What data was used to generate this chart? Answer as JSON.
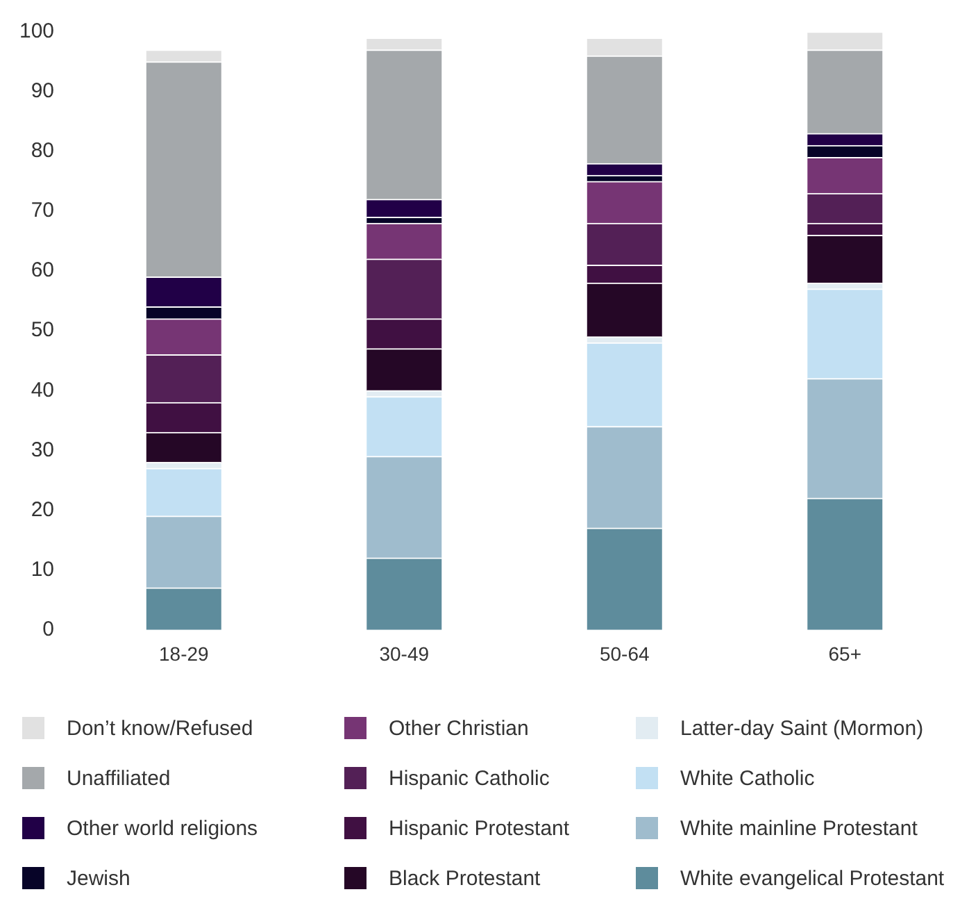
{
  "chart_data": {
    "type": "bar",
    "stacked": true,
    "categories": [
      "18-29",
      "30-49",
      "50-64",
      "65+"
    ],
    "ylim": [
      0,
      100
    ],
    "yticks": [
      0,
      10,
      20,
      30,
      40,
      50,
      60,
      70,
      80,
      90,
      100
    ],
    "grid": false,
    "legend": "bottom",
    "series": [
      {
        "name": "White evangelical Protestant",
        "color": "#5e8c9c",
        "values": [
          7,
          12,
          17,
          22
        ]
      },
      {
        "name": "White mainline Protestant",
        "color": "#9fbccd",
        "values": [
          12,
          17,
          17,
          20
        ]
      },
      {
        "name": "White Catholic",
        "color": "#c2e0f3",
        "values": [
          8,
          10,
          14,
          15
        ]
      },
      {
        "name": "Latter-day Saint (Mormon)",
        "color": "#e2ecf2",
        "values": [
          1,
          1,
          1,
          1
        ]
      },
      {
        "name": "Black Protestant",
        "color": "#250726",
        "values": [
          5,
          7,
          9,
          8
        ]
      },
      {
        "name": "Hispanic Protestant",
        "color": "#401042",
        "values": [
          5,
          5,
          3,
          2
        ]
      },
      {
        "name": "Hispanic Catholic",
        "color": "#532056",
        "values": [
          8,
          10,
          7,
          5
        ]
      },
      {
        "name": "Other Christian",
        "color": "#763574",
        "values": [
          6,
          6,
          7,
          6
        ]
      },
      {
        "name": "Jewish",
        "color": "#070428",
        "values": [
          2,
          1,
          1,
          2
        ]
      },
      {
        "name": "Other world religions",
        "color": "#210047",
        "values": [
          5,
          3,
          2,
          2
        ]
      },
      {
        "name": "Unaffiliated",
        "color": "#a4a8ab",
        "values": [
          36,
          25,
          18,
          14
        ]
      },
      {
        "name": "Don’t know/Refused",
        "color": "#e1e1e1",
        "values": [
          2,
          2,
          3,
          3
        ]
      }
    ]
  }
}
